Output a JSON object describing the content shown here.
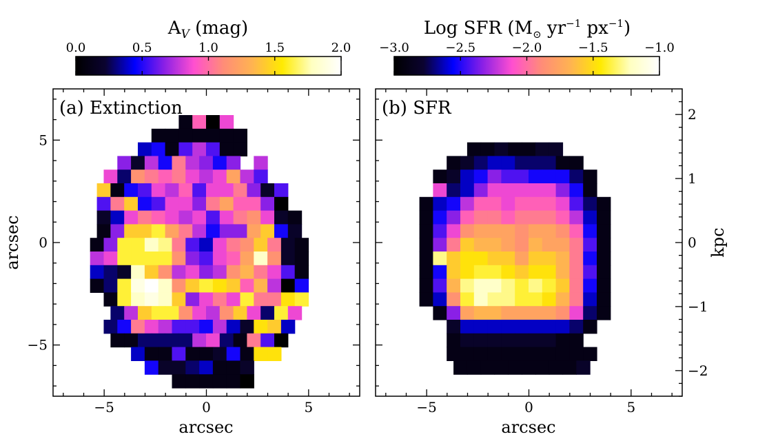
{
  "colors": {
    "background": "#ffffff",
    "axes": "#000000",
    "colormap": [
      "#000000",
      "#0b0330",
      "#0000ff",
      "#8a20e6",
      "#ff4fd0",
      "#ff8c78",
      "#ffb450",
      "#ffea00",
      "#ffffc0",
      "#ffffff"
    ]
  },
  "chart_data": [
    {
      "type": "heatmap",
      "panel_label": "(a) Extinction",
      "colorbar": {
        "title_main": "A",
        "title_sub": "V",
        "title_rest": " (mag)",
        "range": [
          0.0,
          2.0
        ],
        "ticks": [
          0.0,
          0.5,
          1.0,
          1.5,
          2.0
        ],
        "tick_labels": [
          "0.0",
          "0.5",
          "1.0",
          "1.5",
          "2.0"
        ]
      },
      "xlabel": "arcsec",
      "ylabel": "arcsec",
      "xlim": [
        -7.5,
        7.5
      ],
      "ylim": [
        -7.5,
        7.5
      ],
      "x_ticks": [
        -5,
        0,
        5
      ],
      "x_tick_labels": [
        "−5",
        "0",
        "5"
      ],
      "y_ticks": [
        -5,
        0,
        5
      ],
      "y_tick_labels": [
        "−5",
        "0",
        "5"
      ],
      "pixel_size_arcsec": 0.667,
      "grid_origin": [
        -6.0,
        6.33
      ],
      "rows": [
        "      . . . . . . . . . . . . . . . . .     ",
        "      . . . . . . . . . . . . . . . . .     "
      ],
      "cells": [
        "......BKAJ....",
        ".....BBBBBBB....",
        "....EFBGIGBB....",
        "...HCIFLIHFH.I...",
        "..JDMLKLJIJNIG...",
        "..PBFGJIKGJJLHCG..",
        "..GLPFGJJHLNKKHA..",
        "..CEJLKJIJGJLMJCB.",
        "..BHPPRNLIFHHNPFC.",
        "..BHRRTSLGEJLMPLCB.",
        "..IJRRRRMHGJKNTMCB.",
        "..EDCTPMIJHIMOLJGB.",
        "..BDRUVTMPRQPKOIAF.",
        "...BRTUTPHJLJRLLQR.",
        "...DIPRRMJIMPJDRJ.",
        "...DFLJIGGFIECQPE..",
        "....BBDDDDIJDBLGA...",
        ".....EBBGBBCFBQQ...",
        "......FCCDEBBC.....",
        "........BBBBBA....."
      ],
      "nrows": 20
    },
    {
      "type": "heatmap",
      "panel_label": "(b) SFR",
      "colorbar": {
        "title_main": "Log SFR (M",
        "title_sun": "⊙",
        "title_rest": " yr",
        "title_exp1": "−1",
        "title_mid": " px",
        "title_exp2": "−1",
        "title_end": ")",
        "range": [
          -3.0,
          -1.0
        ],
        "ticks": [
          -3.0,
          -2.5,
          -2.0,
          -1.5,
          -1.0
        ],
        "tick_labels": [
          "−3.0",
          "−2.5",
          "−2.0",
          "−1.5",
          "−1.0"
        ]
      },
      "xlabel": "arcsec",
      "ylabel_right": "kpc",
      "xlim": [
        -7.5,
        7.5
      ],
      "x_ticks": [
        -5,
        0,
        5
      ],
      "x_tick_labels": [
        "−5",
        "0",
        "5"
      ],
      "kpc_ticks": [
        2,
        1,
        0,
        -1,
        -2
      ],
      "kpc_tick_labels": [
        "2",
        "1",
        "0",
        "−1",
        "−2"
      ],
      "kpc_per_arcsec": 0.32,
      "cells": [
        "................",
        "................",
        "......BBCBBCC......",
        ".....BCDEEDDDBB.....",
        "....BCEFHGGFFFDB....",
        "....JDEHJJJJJHFB....",
        "...BEFIKKJKKKJGDB...",
        "...BFHKLLKLLLKIEB...",
        "...BGJMNNNMNNMKFB...",
        "...BHLPOONMONNLGB...",
        "...BSPQQPPNPPOLFB...",
        "...BFPQRRQPQQOLGB...",
        "...BGOSTTSRSRPLFB...",
        "...BEMRTSSRRQOLEB...",
        "....BHNOONNNNMJDB...",
        ".....CEEEEEEEEDB....",
        ".....BCCCCCCCBB.....",
        ".....BBBBBBBBBBB....",
        "......BBBBBBBBBC.....",
        "................"
      ],
      "nrows": 20
    }
  ]
}
